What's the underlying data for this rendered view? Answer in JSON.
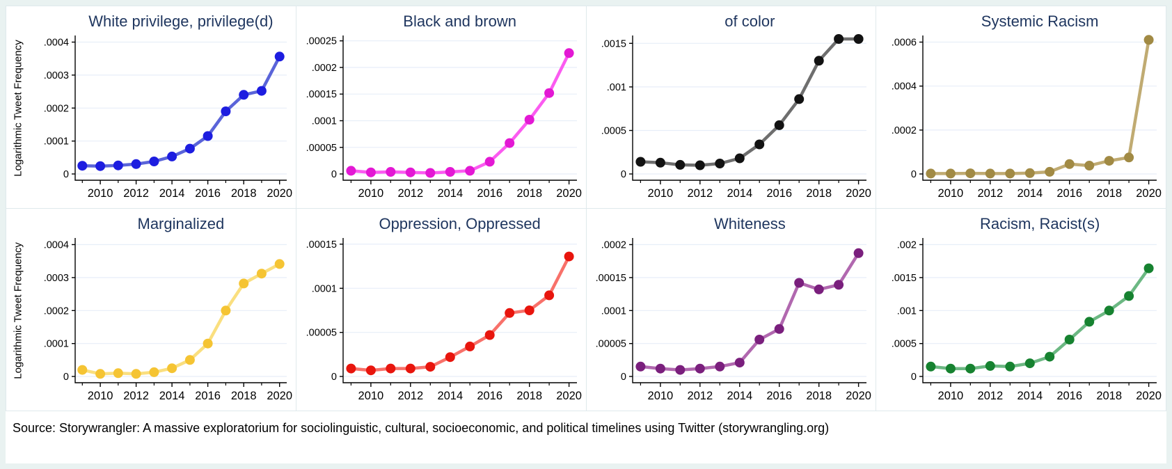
{
  "page": {
    "background_color": "#e9f2f1",
    "panel_background": "#ffffff",
    "title_color": "#1e355e",
    "grid_color": "#e7eef8",
    "axis_color": "#000000",
    "ylabel": "Logarithmic Tweet Frequency",
    "source_note": "Source: Storywrangler: A massive exploratorium for sociolinguistic, cultural, socioeconomic, and political timelines using Twitter (storywrangling.org)"
  },
  "x_axis": {
    "range": [
      2008.6,
      2020.4
    ],
    "labeled_ticks": [
      2010,
      2012,
      2014,
      2016,
      2018,
      2020
    ],
    "minor_ticks": [
      2009,
      2011,
      2013,
      2015,
      2017,
      2019
    ]
  },
  "chart_data": [
    {
      "type": "line",
      "title": "White privilege, privilege(d)",
      "has_ylabel": true,
      "line_color": "#5a64d9",
      "marker_color": "#1d1de0",
      "x": [
        2009,
        2010,
        2011,
        2012,
        2013,
        2014,
        2015,
        2016,
        2017,
        2018,
        2019,
        2020
      ],
      "values": [
        2.5e-05,
        2.4e-05,
        2.6e-05,
        3e-05,
        3.8e-05,
        5.3e-05,
        7.7e-05,
        0.000115,
        0.00019,
        0.00024,
        0.000252,
        0.000356
      ],
      "ytick_values": [
        0,
        0.0001,
        0.0002,
        0.0003,
        0.0004
      ],
      "ytick_labels": [
        "0",
        ".0001",
        ".0002",
        ".0003",
        ".0004"
      ],
      "ylim": [
        0,
        0.00042
      ]
    },
    {
      "type": "line",
      "title": "Black and brown",
      "has_ylabel": false,
      "line_color": "#fb5bf0",
      "marker_color": "#e318d4",
      "x": [
        2009,
        2010,
        2011,
        2012,
        2013,
        2014,
        2015,
        2016,
        2017,
        2018,
        2019,
        2020
      ],
      "values": [
        6e-06,
        3e-06,
        4e-06,
        3e-06,
        2e-06,
        4e-06,
        6e-06,
        2.3e-05,
        5.8e-05,
        0.000102,
        0.000152,
        0.000227
      ],
      "ytick_values": [
        0,
        5e-05,
        0.0001,
        0.00015,
        0.0002,
        0.00025
      ],
      "ytick_labels": [
        "0",
        ".00005",
        ".0001",
        ".00015",
        ".0002",
        ".00025"
      ],
      "ylim": [
        0,
        0.00026
      ]
    },
    {
      "type": "line",
      "title": "of color",
      "has_ylabel": false,
      "line_color": "#6e6e6e",
      "marker_color": "#121212",
      "x": [
        2009,
        2010,
        2011,
        2012,
        2013,
        2014,
        2015,
        2016,
        2017,
        2018,
        2019,
        2020
      ],
      "values": [
        0.00014,
        0.00013,
        0.000105,
        0.0001,
        0.00012,
        0.00018,
        0.00034,
        0.00056,
        0.00086,
        0.0013,
        0.00155,
        0.00155
      ],
      "ytick_values": [
        0,
        0.0005,
        0.001,
        0.0015
      ],
      "ytick_labels": [
        "0",
        ".0005",
        ".001",
        ".0015"
      ],
      "ylim": [
        0,
        0.00159
      ]
    },
    {
      "type": "line",
      "title": "Systemic Racism",
      "has_ylabel": false,
      "line_color": "#c0ab72",
      "marker_color": "#a18a44",
      "x": [
        2009,
        2010,
        2011,
        2012,
        2013,
        2014,
        2015,
        2016,
        2017,
        2018,
        2019,
        2020
      ],
      "values": [
        2e-06,
        2e-06,
        3e-06,
        2e-06,
        2e-06,
        4e-06,
        1e-05,
        4.5e-05,
        3.8e-05,
        6e-05,
        7.5e-05,
        0.00061
      ],
      "ytick_values": [
        0,
        0.0002,
        0.0004,
        0.0006
      ],
      "ytick_labels": [
        "0",
        ".0002",
        ".0004",
        ".0006"
      ],
      "ylim": [
        0,
        0.00063
      ]
    },
    {
      "type": "line",
      "title": "Marginalized",
      "has_ylabel": true,
      "line_color": "#fadf7f",
      "marker_color": "#f5c433",
      "x": [
        2009,
        2010,
        2011,
        2012,
        2013,
        2014,
        2015,
        2016,
        2017,
        2018,
        2019,
        2020
      ],
      "values": [
        2e-05,
        8e-06,
        1e-05,
        8e-06,
        1.3e-05,
        2.5e-05,
        5e-05,
        0.0001,
        0.0002,
        0.000282,
        0.000312,
        0.000341
      ],
      "ytick_values": [
        0,
        0.0001,
        0.0002,
        0.0003,
        0.0004
      ],
      "ytick_labels": [
        "0",
        ".0001",
        ".0002",
        ".0003",
        ".0004"
      ],
      "ylim": [
        0,
        0.00042
      ]
    },
    {
      "type": "line",
      "title": "Oppression, Oppressed",
      "has_ylabel": false,
      "line_color": "#f8716a",
      "marker_color": "#e8150d",
      "x": [
        2009,
        2010,
        2011,
        2012,
        2013,
        2014,
        2015,
        2016,
        2017,
        2018,
        2019,
        2020
      ],
      "values": [
        9e-06,
        7e-06,
        9e-06,
        9e-06,
        1.1e-05,
        2.2e-05,
        3.4e-05,
        4.7e-05,
        7.2e-05,
        7.5e-05,
        9.2e-05,
        0.000136
      ],
      "ytick_values": [
        0,
        5e-05,
        0.0001,
        0.00015
      ],
      "ytick_labels": [
        "0",
        ".00005",
        ".0001",
        ".00015"
      ],
      "ylim": [
        0,
        0.000157
      ]
    },
    {
      "type": "line",
      "title": "Whiteness",
      "has_ylabel": false,
      "line_color": "#b168af",
      "marker_color": "#7a1f7d",
      "x": [
        2009,
        2010,
        2011,
        2012,
        2013,
        2014,
        2015,
        2016,
        2017,
        2018,
        2019,
        2020
      ],
      "values": [
        1.5e-05,
        1.2e-05,
        1e-05,
        1.2e-05,
        1.5e-05,
        2.1e-05,
        5.6e-05,
        7.2e-05,
        0.000142,
        0.000132,
        0.000139,
        0.000187
      ],
      "ytick_values": [
        0,
        5e-05,
        0.0001,
        0.00015,
        0.0002
      ],
      "ytick_labels": [
        "0",
        ".00005",
        ".0001",
        ".00015",
        ".0002"
      ],
      "ylim": [
        0,
        0.00021
      ]
    },
    {
      "type": "line",
      "title": "Racism, Racist(s)",
      "has_ylabel": false,
      "line_color": "#6cb883",
      "marker_color": "#168230",
      "x": [
        2009,
        2010,
        2011,
        2012,
        2013,
        2014,
        2015,
        2016,
        2017,
        2018,
        2019,
        2020
      ],
      "values": [
        0.00015,
        0.00012,
        0.00012,
        0.00016,
        0.00015,
        0.0002,
        0.0003,
        0.00056,
        0.00083,
        0.001,
        0.00122,
        0.00164
      ],
      "ytick_values": [
        0,
        0.0005,
        0.001,
        0.0015,
        0.002
      ],
      "ytick_labels": [
        "0",
        ".0005",
        ".001",
        ".0015",
        ".002"
      ],
      "ylim": [
        0,
        0.0021
      ]
    }
  ]
}
